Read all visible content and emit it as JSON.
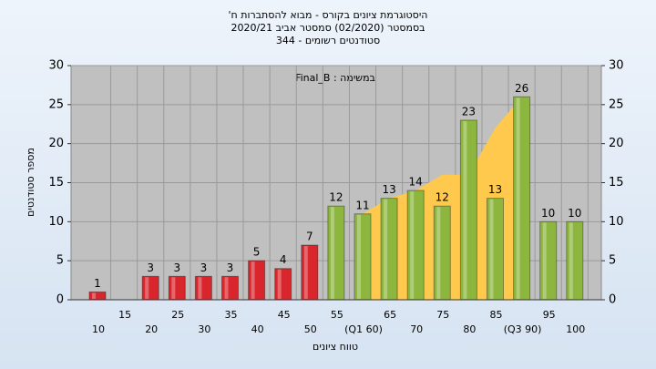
{
  "chart_data": {
    "type": "bar",
    "title": "היסטוגרמת ציונים בקורס - מבוא להסתברות ח'",
    "subtitle": "בסמסטר  (02/2020)  סמסטר אביב 2020/21",
    "subtitle2": "סטודנטים רשומים - 344",
    "annotation": "במשימה : Final_B",
    "x_label": "טווח ציונים",
    "y_label": "מספר סטודנטים",
    "categories": [
      "10",
      "15",
      "20",
      "25",
      "30",
      "35",
      "40",
      "45",
      "50",
      "55",
      "(Q1 60)",
      "65",
      "70",
      "75",
      "80",
      "85",
      "(Q3 90)",
      "95",
      "100"
    ],
    "values": [
      1,
      null,
      3,
      3,
      3,
      3,
      5,
      4,
      7,
      12,
      11,
      13,
      14,
      12,
      23,
      13,
      26,
      10,
      10
    ],
    "colors": [
      "#d8262c",
      "#d8262c",
      "#d8262c",
      "#d8262c",
      "#d8262c",
      "#d8262c",
      "#d8262c",
      "#d8262c",
      "#d8262c",
      "#8db63f",
      "#8db63f",
      "#8db63f",
      "#8db63f",
      "#8db63f",
      "#8db63f",
      "#8db63f",
      "#8db63f",
      "#8db63f",
      "#8db63f"
    ],
    "area": {
      "color": "#ffc94d",
      "values": [
        null,
        null,
        null,
        null,
        null,
        null,
        null,
        null,
        null,
        null,
        11,
        13,
        14,
        16,
        16,
        22,
        26,
        null,
        null
      ]
    },
    "ylim": [
      0,
      30
    ],
    "yticks": [
      0,
      5,
      10,
      15,
      20,
      25,
      30
    ],
    "y2lim": [
      0,
      30
    ],
    "y2ticks": [
      0,
      5,
      10,
      15,
      20,
      25,
      30
    ],
    "grid": true
  }
}
